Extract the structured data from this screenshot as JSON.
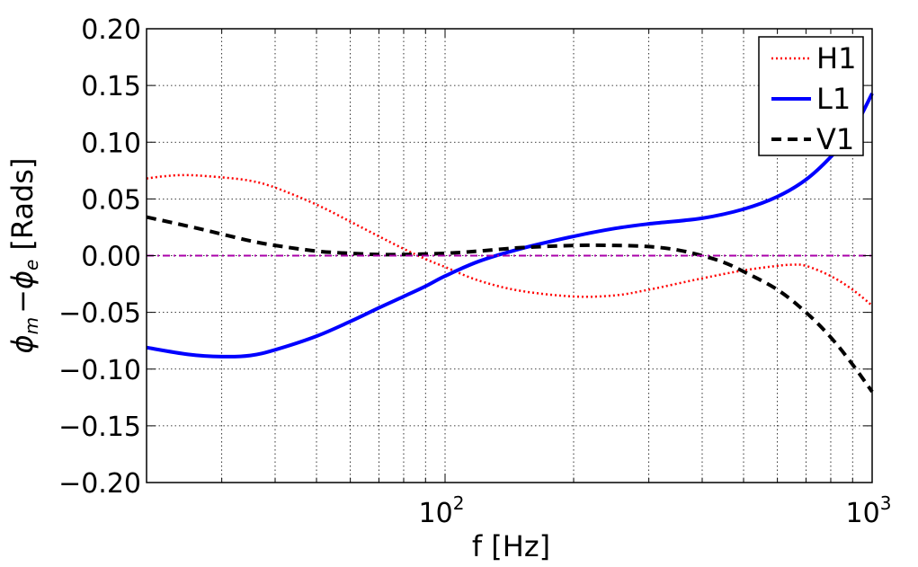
{
  "chart_data": {
    "type": "line",
    "xlabel": "f [Hz]",
    "ylabel_math": "ϕm − ϕe",
    "ylabel_parts": {
      "phi1": "ϕ",
      "sub1": "m",
      "minus": "−",
      "phi2": "ϕ",
      "sub2": "e",
      "unit": "[Rads]"
    },
    "x_scale": "log",
    "xlim": [
      20,
      1000
    ],
    "ylim": [
      -0.2,
      0.2
    ],
    "x_ticks": [
      {
        "value": 100,
        "base": "10",
        "exp": "2"
      },
      {
        "value": 1000,
        "base": "10",
        "exp": "3"
      }
    ],
    "y_ticks": [
      {
        "value": 0.2,
        "label": "0.20"
      },
      {
        "value": 0.15,
        "label": "0.15"
      },
      {
        "value": 0.1,
        "label": "0.10"
      },
      {
        "value": 0.05,
        "label": "0.05"
      },
      {
        "value": 0.0,
        "label": "0.00"
      },
      {
        "value": -0.05,
        "label": "−0.05"
      },
      {
        "value": -0.1,
        "label": "−0.10"
      },
      {
        "value": -0.15,
        "label": "−0.15"
      },
      {
        "value": -0.2,
        "label": "−0.20"
      }
    ],
    "grid": true,
    "legend_position": "top-right",
    "series": [
      {
        "name": "H1",
        "color": "#ff0000",
        "style": "dotted",
        "points": [
          [
            20,
            0.068
          ],
          [
            22,
            0.07
          ],
          [
            25,
            0.071
          ],
          [
            30,
            0.069
          ],
          [
            35,
            0.066
          ],
          [
            40,
            0.06
          ],
          [
            50,
            0.045
          ],
          [
            60,
            0.03
          ],
          [
            70,
            0.017
          ],
          [
            80,
            0.006
          ],
          [
            90,
            -0.003
          ],
          [
            100,
            -0.01
          ],
          [
            120,
            -0.022
          ],
          [
            150,
            -0.031
          ],
          [
            200,
            -0.036
          ],
          [
            250,
            -0.035
          ],
          [
            300,
            -0.03
          ],
          [
            400,
            -0.02
          ],
          [
            500,
            -0.013
          ],
          [
            600,
            -0.009
          ],
          [
            650,
            -0.008
          ],
          [
            700,
            -0.009
          ],
          [
            800,
            -0.018
          ],
          [
            900,
            -0.03
          ],
          [
            1000,
            -0.044
          ]
        ]
      },
      {
        "name": "L1",
        "color": "#0000ff",
        "style": "solid",
        "points": [
          [
            20,
            -0.081
          ],
          [
            25,
            -0.087
          ],
          [
            30,
            -0.089
          ],
          [
            35,
            -0.088
          ],
          [
            40,
            -0.083
          ],
          [
            50,
            -0.071
          ],
          [
            60,
            -0.058
          ],
          [
            70,
            -0.046
          ],
          [
            80,
            -0.036
          ],
          [
            90,
            -0.027
          ],
          [
            100,
            -0.018
          ],
          [
            120,
            -0.005
          ],
          [
            150,
            0.006
          ],
          [
            200,
            0.017
          ],
          [
            250,
            0.024
          ],
          [
            300,
            0.028
          ],
          [
            400,
            0.033
          ],
          [
            500,
            0.041
          ],
          [
            600,
            0.052
          ],
          [
            700,
            0.067
          ],
          [
            800,
            0.087
          ],
          [
            900,
            0.11
          ],
          [
            1000,
            0.143
          ]
        ]
      },
      {
        "name": "V1",
        "color": "#000000",
        "style": "dashed",
        "points": [
          [
            20,
            0.034
          ],
          [
            25,
            0.026
          ],
          [
            30,
            0.019
          ],
          [
            35,
            0.013
          ],
          [
            40,
            0.009
          ],
          [
            50,
            0.004
          ],
          [
            60,
            0.002
          ],
          [
            70,
            0.001
          ],
          [
            80,
            0.001
          ],
          [
            100,
            0.002
          ],
          [
            120,
            0.004
          ],
          [
            150,
            0.007
          ],
          [
            200,
            0.009
          ],
          [
            250,
            0.009
          ],
          [
            300,
            0.008
          ],
          [
            350,
            0.005
          ],
          [
            400,
            0.0
          ],
          [
            450,
            -0.006
          ],
          [
            500,
            -0.014
          ],
          [
            600,
            -0.03
          ],
          [
            700,
            -0.05
          ],
          [
            800,
            -0.072
          ],
          [
            900,
            -0.096
          ],
          [
            1000,
            -0.12
          ]
        ]
      },
      {
        "name": "",
        "color": "#aa00aa",
        "style": "dashdot",
        "points": [
          [
            20,
            0.0
          ],
          [
            1000,
            0.0
          ]
        ]
      }
    ]
  }
}
